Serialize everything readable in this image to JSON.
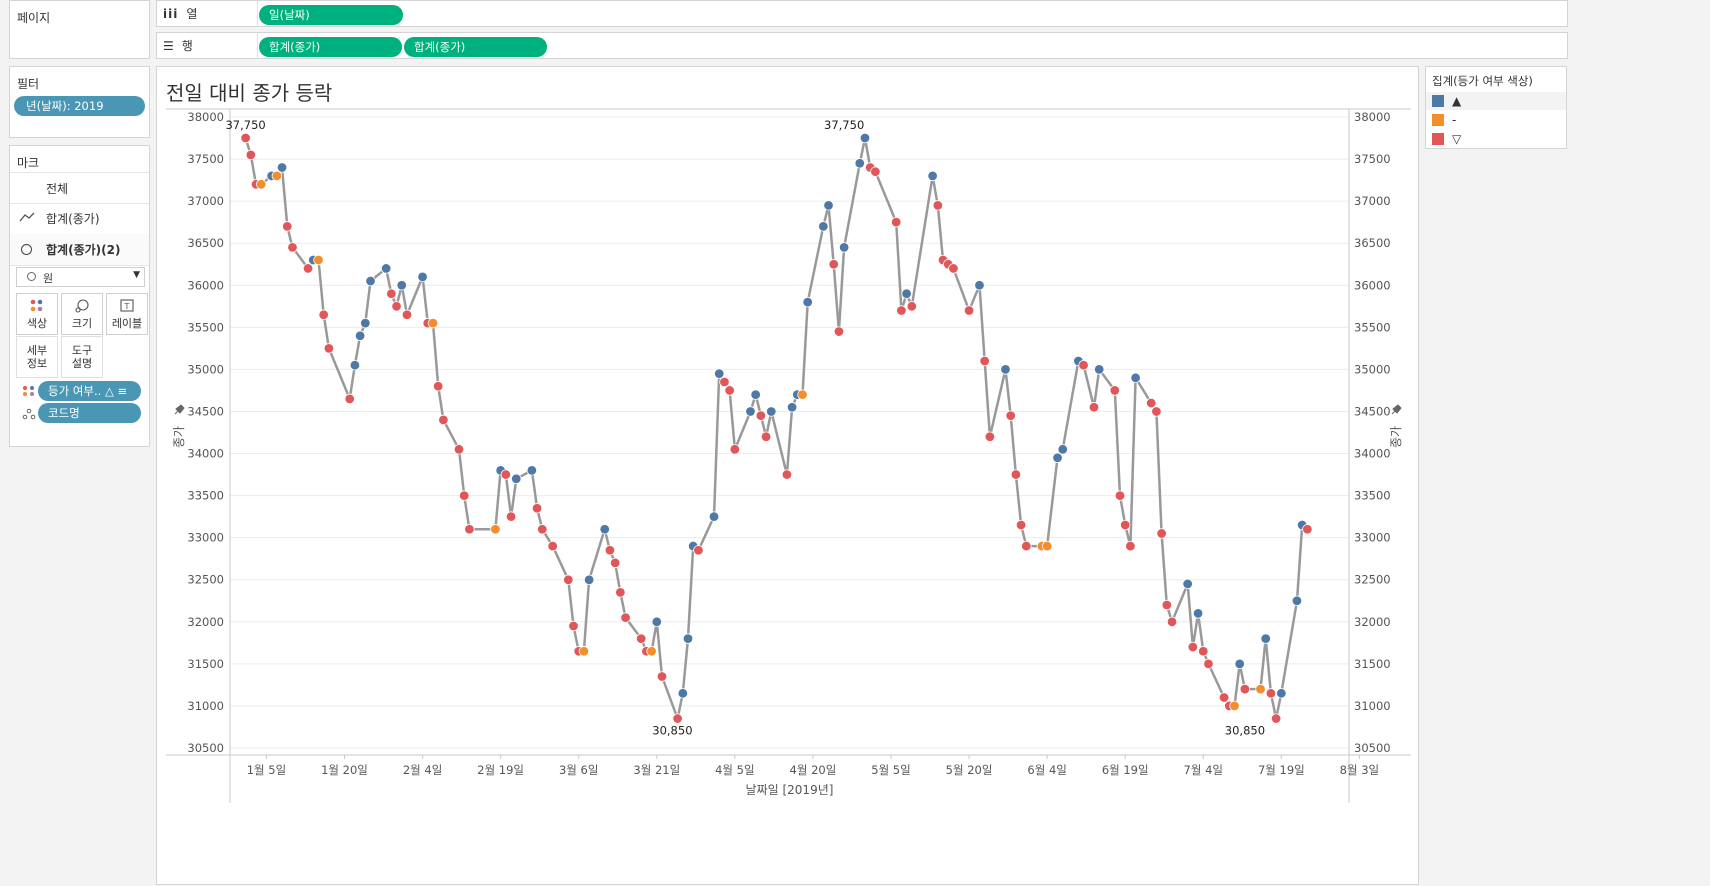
{
  "pages_panel": {
    "title": "페이지"
  },
  "columns_shelf": {
    "icon": "iii",
    "label": "열",
    "pills": [
      "일(날짜)"
    ]
  },
  "rows_shelf": {
    "icon": "☰",
    "label": "행",
    "pills": [
      "합계(종가)",
      "합계(종가)"
    ]
  },
  "filters": {
    "title": "필터",
    "items": [
      "년(날짜): 2019"
    ]
  },
  "marks": {
    "title": "마크",
    "cards": [
      "전체",
      "합계(종가)",
      "합계(종가)(2)"
    ],
    "mark_type": "원",
    "buttons": [
      "색상",
      "크기",
      "레이블",
      "세부\n정보",
      "도구\n설명"
    ],
    "fields": [
      "등가 여부.. △ ≡",
      "코드명"
    ]
  },
  "legend": {
    "title": "집계(등가 여부 색상)",
    "items": [
      {
        "label": "▲",
        "color": "#4e79a7"
      },
      {
        "label": "-",
        "color": "#f28e2b"
      },
      {
        "label": "▽",
        "color": "#e15759"
      }
    ]
  },
  "chart_data": {
    "type": "line",
    "title": "전일 대비 종가 등락",
    "xlabel": "날짜일 [2019년]",
    "ylabel": "종가",
    "ylabel_right": "종가",
    "ylim": [
      30500,
      38000
    ],
    "yticks": [
      "38000",
      "37500",
      "37000",
      "36500",
      "36000",
      "35500",
      "35000",
      "34500",
      "34000",
      "33500",
      "33000",
      "32500",
      "32000",
      "31500",
      "31000",
      "30500"
    ],
    "xlim_days": [
      -3,
      212
    ],
    "xticks": [
      {
        "day": 4,
        "label": "1월 5일"
      },
      {
        "day": 19,
        "label": "1월 20일"
      },
      {
        "day": 34,
        "label": "2월 4일"
      },
      {
        "day": 49,
        "label": "2월 19일"
      },
      {
        "day": 64,
        "label": "3월 6일"
      },
      {
        "day": 79,
        "label": "3월 21일"
      },
      {
        "day": 94,
        "label": "4월 5일"
      },
      {
        "day": 109,
        "label": "4월 20일"
      },
      {
        "day": 124,
        "label": "5월 5일"
      },
      {
        "day": 139,
        "label": "5월 20일"
      },
      {
        "day": 154,
        "label": "6월 4일"
      },
      {
        "day": 169,
        "label": "6월 19일"
      },
      {
        "day": 184,
        "label": "7월 4일"
      },
      {
        "day": 199,
        "label": "7월 19일"
      },
      {
        "day": 214,
        "label": "8월 3일"
      }
    ],
    "colors": {
      "up": "#4e79a7",
      "same": "#f28e2b",
      "down": "#e15759",
      "line": "#999999"
    },
    "annotations": [
      {
        "day": 0,
        "value": 37750,
        "label": "37,750",
        "pos": "above"
      },
      {
        "day": 115,
        "value": 37750,
        "label": "37,750",
        "pos": "above"
      },
      {
        "day": 82,
        "value": 30850,
        "label": "30,850",
        "pos": "below"
      },
      {
        "day": 192,
        "value": 30850,
        "label": "30,850",
        "pos": "below"
      }
    ],
    "points": [
      [
        0,
        37750,
        "down"
      ],
      [
        1,
        37550,
        "down"
      ],
      [
        2,
        37200,
        "down"
      ],
      [
        3,
        37200,
        "same"
      ],
      [
        5,
        37300,
        "up"
      ],
      [
        6,
        37300,
        "same"
      ],
      [
        7,
        37400,
        "up"
      ],
      [
        8,
        36700,
        "down"
      ],
      [
        9,
        36450,
        "down"
      ],
      [
        12,
        36200,
        "down"
      ],
      [
        13,
        36300,
        "up"
      ],
      [
        14,
        36300,
        "same"
      ],
      [
        15,
        35650,
        "down"
      ],
      [
        16,
        35250,
        "down"
      ],
      [
        20,
        34650,
        "down"
      ],
      [
        21,
        35050,
        "up"
      ],
      [
        22,
        35400,
        "up"
      ],
      [
        23,
        35550,
        "up"
      ],
      [
        24,
        36050,
        "up"
      ],
      [
        27,
        36200,
        "up"
      ],
      [
        28,
        35900,
        "down"
      ],
      [
        29,
        35750,
        "down"
      ],
      [
        30,
        36000,
        "up"
      ],
      [
        31,
        35650,
        "down"
      ],
      [
        34,
        36100,
        "up"
      ],
      [
        35,
        35550,
        "down"
      ],
      [
        36,
        35550,
        "same"
      ],
      [
        37,
        34800,
        "down"
      ],
      [
        38,
        34400,
        "down"
      ],
      [
        41,
        34050,
        "down"
      ],
      [
        42,
        33500,
        "down"
      ],
      [
        43,
        33100,
        "down"
      ],
      [
        48,
        33100,
        "same"
      ],
      [
        49,
        33800,
        "up"
      ],
      [
        50,
        33750,
        "down"
      ],
      [
        51,
        33250,
        "down"
      ],
      [
        52,
        33700,
        "up"
      ],
      [
        55,
        33800,
        "up"
      ],
      [
        56,
        33350,
        "down"
      ],
      [
        57,
        33100,
        "down"
      ],
      [
        59,
        32900,
        "down"
      ],
      [
        62,
        32500,
        "down"
      ],
      [
        63,
        31950,
        "down"
      ],
      [
        64,
        31650,
        "down"
      ],
      [
        65,
        31650,
        "same"
      ],
      [
        66,
        32500,
        "up"
      ],
      [
        69,
        33100,
        "up"
      ],
      [
        70,
        32850,
        "down"
      ],
      [
        71,
        32700,
        "down"
      ],
      [
        72,
        32350,
        "down"
      ],
      [
        73,
        32050,
        "down"
      ],
      [
        76,
        31800,
        "down"
      ],
      [
        77,
        31650,
        "down"
      ],
      [
        78,
        31650,
        "same"
      ],
      [
        79,
        32000,
        "up"
      ],
      [
        80,
        31350,
        "down"
      ],
      [
        83,
        30850,
        "down"
      ],
      [
        84,
        31150,
        "up"
      ],
      [
        85,
        31800,
        "up"
      ],
      [
        86,
        32900,
        "up"
      ],
      [
        87,
        32850,
        "down"
      ],
      [
        90,
        33250,
        "up"
      ],
      [
        91,
        34950,
        "up"
      ],
      [
        92,
        34850,
        "down"
      ],
      [
        93,
        34750,
        "down"
      ],
      [
        94,
        34050,
        "down"
      ],
      [
        97,
        34500,
        "up"
      ],
      [
        98,
        34700,
        "up"
      ],
      [
        99,
        34450,
        "down"
      ],
      [
        100,
        34200,
        "down"
      ],
      [
        101,
        34500,
        "up"
      ],
      [
        104,
        33750,
        "down"
      ],
      [
        105,
        34550,
        "up"
      ],
      [
        106,
        34700,
        "up"
      ],
      [
        107,
        34700,
        "same"
      ],
      [
        108,
        35800,
        "up"
      ],
      [
        111,
        36700,
        "up"
      ],
      [
        112,
        36950,
        "up"
      ],
      [
        113,
        36250,
        "down"
      ],
      [
        114,
        35450,
        "down"
      ],
      [
        115,
        36450,
        "up"
      ],
      [
        118,
        37450,
        "up"
      ],
      [
        119,
        37750,
        "up"
      ],
      [
        120,
        37400,
        "down"
      ],
      [
        121,
        37350,
        "down"
      ],
      [
        125,
        36750,
        "down"
      ],
      [
        126,
        35700,
        "down"
      ],
      [
        127,
        35900,
        "up"
      ],
      [
        128,
        35750,
        "down"
      ],
      [
        132,
        37300,
        "up"
      ],
      [
        133,
        36950,
        "down"
      ],
      [
        134,
        36300,
        "down"
      ],
      [
        135,
        36250,
        "down"
      ],
      [
        136,
        36200,
        "down"
      ],
      [
        139,
        35700,
        "down"
      ],
      [
        141,
        36000,
        "up"
      ],
      [
        142,
        35100,
        "down"
      ],
      [
        143,
        34200,
        "down"
      ],
      [
        146,
        35000,
        "up"
      ],
      [
        147,
        34450,
        "down"
      ],
      [
        148,
        33750,
        "down"
      ],
      [
        149,
        33150,
        "down"
      ],
      [
        150,
        32900,
        "down"
      ],
      [
        153,
        32900,
        "same"
      ],
      [
        154,
        32900,
        "same"
      ],
      [
        156,
        33950,
        "up"
      ],
      [
        157,
        34050,
        "up"
      ],
      [
        160,
        35100,
        "up"
      ],
      [
        161,
        35050,
        "down"
      ],
      [
        163,
        34550,
        "down"
      ],
      [
        164,
        35000,
        "up"
      ],
      [
        167,
        34750,
        "down"
      ],
      [
        168,
        33500,
        "down"
      ],
      [
        169,
        33150,
        "down"
      ],
      [
        170,
        32900,
        "down"
      ],
      [
        171,
        34900,
        "up"
      ],
      [
        174,
        34600,
        "down"
      ],
      [
        175,
        34500,
        "down"
      ],
      [
        176,
        33050,
        "down"
      ],
      [
        177,
        32200,
        "down"
      ],
      [
        178,
        32000,
        "down"
      ],
      [
        181,
        32450,
        "up"
      ],
      [
        182,
        31700,
        "down"
      ],
      [
        183,
        32100,
        "up"
      ],
      [
        184,
        31650,
        "down"
      ],
      [
        185,
        31500,
        "down"
      ],
      [
        188,
        31100,
        "down"
      ],
      [
        189,
        31000,
        "down"
      ],
      [
        190,
        31000,
        "same"
      ],
      [
        191,
        31500,
        "up"
      ],
      [
        192,
        31200,
        "down"
      ],
      [
        195,
        31200,
        "same"
      ],
      [
        196,
        31800,
        "up"
      ],
      [
        197,
        31150,
        "down"
      ],
      [
        198,
        30850,
        "down"
      ],
      [
        199,
        31150,
        "up"
      ],
      [
        202,
        32250,
        "up"
      ],
      [
        203,
        33150,
        "up"
      ],
      [
        204,
        33100,
        "down"
      ]
    ]
  }
}
